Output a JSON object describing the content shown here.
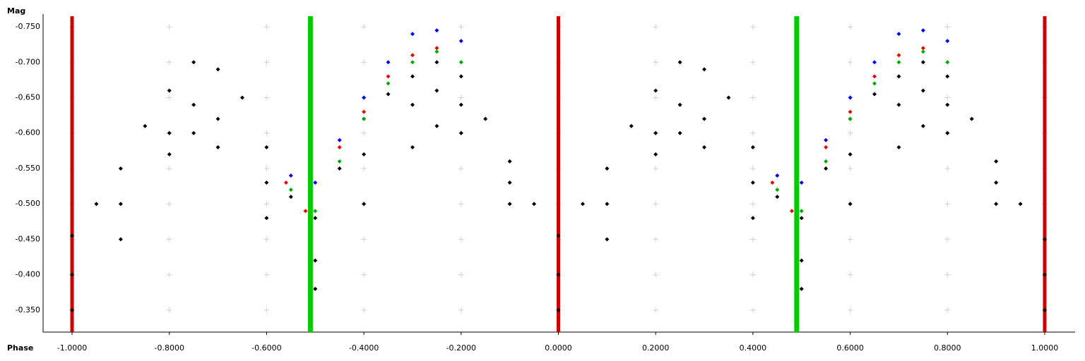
{
  "chart_data": {
    "type": "scatter",
    "xlabel": "Phase",
    "ylabel": "Mag",
    "xlim": [
      -1.0596,
      1.0625
    ],
    "ylim": [
      -0.319,
      -0.768
    ],
    "xticks": [
      {
        "value": -1,
        "label": "-1.0000"
      },
      {
        "value": -0.8,
        "label": "-0.8000"
      },
      {
        "value": -0.6,
        "label": "-0.6000"
      },
      {
        "value": -0.4,
        "label": "-0.4000"
      },
      {
        "value": -0.2,
        "label": "-0.2000"
      },
      {
        "value": 0,
        "label": "0.0000"
      },
      {
        "value": 0.2,
        "label": "0.2000"
      },
      {
        "value": 0.4,
        "label": "0.4000"
      },
      {
        "value": 0.6,
        "label": "0.6000"
      },
      {
        "value": 0.8,
        "label": "0.8000"
      },
      {
        "value": 1,
        "label": "1.0000"
      }
    ],
    "yticks": [
      {
        "value": -0.75,
        "label": "-0.750"
      },
      {
        "value": -0.7,
        "label": "-0.700"
      },
      {
        "value": -0.65,
        "label": "-0.650"
      },
      {
        "value": -0.6,
        "label": "-0.600"
      },
      {
        "value": -0.55,
        "label": "-0.550"
      },
      {
        "value": -0.5,
        "label": "-0.500"
      },
      {
        "value": -0.45,
        "label": "-0.450"
      },
      {
        "value": -0.4,
        "label": "-0.400"
      },
      {
        "value": -0.35,
        "label": "-0.350"
      }
    ],
    "grid": true,
    "reference_lines": [
      {
        "color": "#cc0000",
        "x": [
          -1,
          0,
          1
        ]
      },
      {
        "color": "#00cc00",
        "x": [
          -0.51,
          0.49
        ]
      }
    ],
    "series": [
      {
        "color": "#000000",
        "x": [
          -1,
          -0.95,
          -0.9,
          -0.85,
          -0.8,
          -0.75,
          -0.7,
          -0.65,
          -0.6,
          -0.55,
          -0.5,
          -0.45,
          -0.4,
          -0.35,
          -0.3,
          -0.25,
          -0.2,
          -0.15,
          -0.1,
          -0.05,
          -1,
          -0.9,
          -0.8,
          -0.75,
          -0.7,
          -0.6,
          -0.5,
          -0.4,
          -0.3,
          -0.25,
          -0.2,
          -0.1,
          -1,
          -0.9,
          -0.8,
          -0.75,
          -0.7,
          -0.6,
          -0.5,
          -0.4,
          -0.3,
          -0.25,
          -0.2,
          -0.1,
          0,
          0.05,
          0.1,
          0.15,
          0.2,
          0.25,
          0.3,
          0.35,
          0.4,
          0.45,
          0.5,
          0.55,
          0.6,
          0.65,
          0.7,
          0.75,
          0.8,
          0.85,
          0.9,
          0.95,
          0,
          0.1,
          0.2,
          0.25,
          0.3,
          0.4,
          0.5,
          0.6,
          0.7,
          0.75,
          0.8,
          0.9,
          0,
          0.1,
          0.2,
          0.25,
          0.3,
          0.4,
          0.5,
          0.6,
          0.7,
          0.75,
          0.8,
          0.9,
          1,
          1,
          1
        ],
        "values": [
          -0.455,
          -0.5,
          -0.55,
          -0.61,
          -0.66,
          -0.7,
          -0.69,
          -0.65,
          -0.58,
          -0.51,
          -0.48,
          -0.55,
          -0.62,
          -0.655,
          -0.68,
          -0.7,
          -0.68,
          -0.62,
          -0.56,
          -0.5,
          -0.4,
          -0.5,
          -0.6,
          -0.64,
          -0.62,
          -0.53,
          -0.42,
          -0.57,
          -0.64,
          -0.66,
          -0.64,
          -0.53,
          -0.35,
          -0.45,
          -0.57,
          -0.6,
          -0.58,
          -0.48,
          -0.38,
          -0.5,
          -0.58,
          -0.61,
          -0.6,
          -0.5,
          -0.455,
          -0.5,
          -0.55,
          -0.61,
          -0.66,
          -0.7,
          -0.69,
          -0.65,
          -0.58,
          -0.51,
          -0.48,
          -0.55,
          -0.62,
          -0.655,
          -0.68,
          -0.7,
          -0.68,
          -0.62,
          -0.56,
          -0.5,
          -0.4,
          -0.5,
          -0.6,
          -0.64,
          -0.62,
          -0.53,
          -0.42,
          -0.57,
          -0.64,
          -0.66,
          -0.64,
          -0.53,
          -0.35,
          -0.45,
          -0.57,
          -0.6,
          -0.58,
          -0.48,
          -0.38,
          -0.5,
          -0.58,
          -0.61,
          -0.6,
          -0.5,
          -0.45,
          -0.4,
          -0.35
        ]
      },
      {
        "color": "#0000ee",
        "x": [
          -0.55,
          -0.5,
          -0.45,
          -0.4,
          -0.35,
          -0.3,
          -0.25,
          -0.2,
          0.45,
          0.5,
          0.55,
          0.6,
          0.65,
          0.7,
          0.75,
          0.8
        ],
        "values": [
          -0.54,
          -0.53,
          -0.59,
          -0.65,
          -0.7,
          -0.74,
          -0.745,
          -0.73,
          -0.54,
          -0.53,
          -0.59,
          -0.65,
          -0.7,
          -0.74,
          -0.745,
          -0.73
        ]
      },
      {
        "color": "#ee0000",
        "x": [
          -0.56,
          -0.52,
          -0.45,
          -0.4,
          -0.35,
          -0.3,
          -0.25,
          0.44,
          0.48,
          0.55,
          0.6,
          0.65,
          0.7,
          0.75
        ],
        "values": [
          -0.53,
          -0.49,
          -0.58,
          -0.63,
          -0.68,
          -0.71,
          -0.72,
          -0.53,
          -0.49,
          -0.58,
          -0.63,
          -0.68,
          -0.71,
          -0.72
        ]
      },
      {
        "color": "#00aa00",
        "x": [
          -0.55,
          -0.5,
          -0.45,
          -0.4,
          -0.35,
          -0.3,
          -0.25,
          -0.2,
          0.45,
          0.5,
          0.55,
          0.6,
          0.65,
          0.7,
          0.75,
          0.8
        ],
        "values": [
          -0.52,
          -0.49,
          -0.56,
          -0.62,
          -0.67,
          -0.7,
          -0.715,
          -0.7,
          -0.52,
          -0.49,
          -0.56,
          -0.62,
          -0.67,
          -0.7,
          -0.715,
          -0.7
        ]
      }
    ]
  }
}
